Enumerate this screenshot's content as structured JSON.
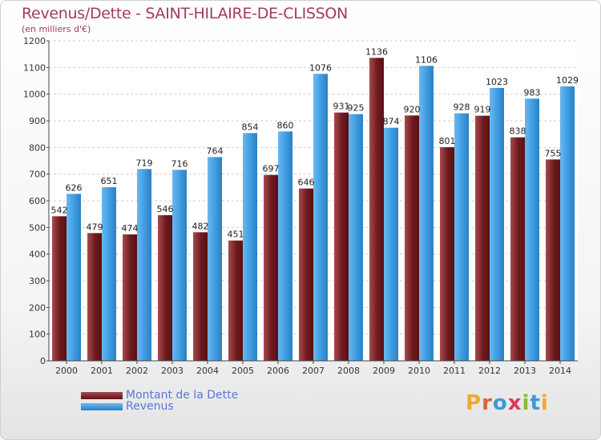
{
  "title": "Revenus/Dette - SAINT-HILAIRE-DE-CLISSON",
  "subtitle": "(en milliers d'€)",
  "logo": {
    "text": "Proxiti",
    "letters": [
      {
        "ch": "P",
        "color": "#f0a830"
      },
      {
        "ch": "r",
        "color": "#e0603a"
      },
      {
        "ch": "o",
        "color": "#3a9ad8"
      },
      {
        "ch": "x",
        "color": "#d83a5a"
      },
      {
        "ch": "i",
        "color": "#8ab840"
      },
      {
        "ch": "t",
        "color": "#3a9ad8"
      },
      {
        "ch": "i",
        "color": "#f0a830"
      }
    ]
  },
  "chart_data": {
    "type": "bar",
    "title": "Revenus/Dette - SAINT-HILAIRE-DE-CLISSON",
    "subtitle": "(en milliers d'€)",
    "xlabel": "",
    "ylabel": "",
    "ylim": [
      0,
      1200
    ],
    "yticks": [
      0,
      100,
      200,
      300,
      400,
      500,
      600,
      700,
      800,
      900,
      1000,
      1100,
      1200
    ],
    "grid": true,
    "legend": "bottom-left",
    "categories": [
      "2000",
      "2001",
      "2002",
      "2003",
      "2004",
      "2005",
      "2006",
      "2007",
      "2008",
      "2009",
      "2010",
      "2011",
      "2012",
      "2013",
      "2014"
    ],
    "series": [
      {
        "name": "Montant de la Dette",
        "color": "#7a1e22",
        "values": [
          542,
          479,
          474,
          546,
          482,
          451,
          697,
          646,
          931,
          1136,
          920,
          801,
          919,
          838,
          755
        ]
      },
      {
        "name": "Revenus",
        "color": "#3d9be0",
        "values": [
          626,
          651,
          719,
          716,
          764,
          854,
          860,
          1076,
          925,
          874,
          1106,
          928,
          1023,
          983,
          1029
        ]
      }
    ]
  }
}
